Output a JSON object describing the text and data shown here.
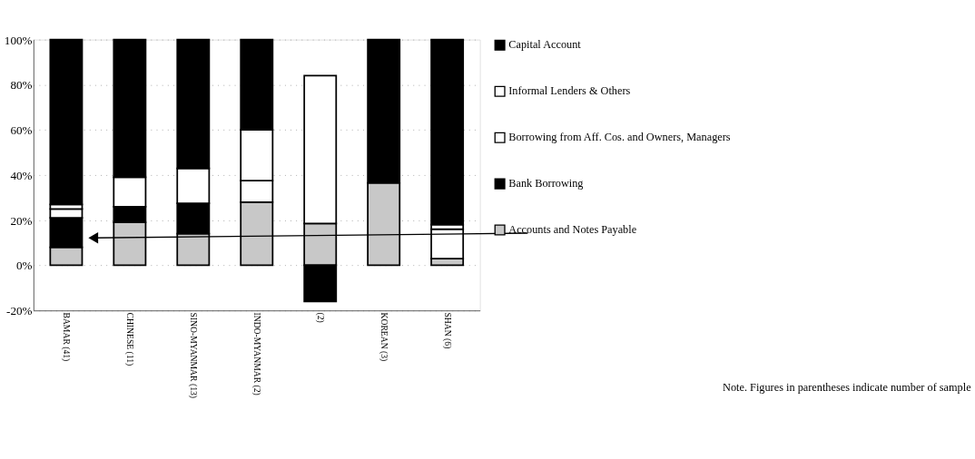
{
  "chart_data": {
    "type": "bar",
    "stacked": true,
    "categories": [
      "BAMAR (41)",
      "CHINESE (11)",
      "SINO-MYANMAR (13)",
      "INDO-MYANMAR (2)",
      "(2)",
      "KOREAN (3)",
      "SHAN (6)"
    ],
    "series": [
      {
        "name": "Accounts and Notes Payable",
        "color": "#c8c8c8",
        "values": [
          8,
          19,
          14,
          28,
          18.5,
          36.5,
          3
        ]
      },
      {
        "name": "Bank Borrowing",
        "color": "#000000",
        "values": [
          13,
          7,
          13.5,
          0,
          -16,
          0,
          0
        ]
      },
      {
        "name": "Borrowing from Aff. Cos. and Owners, Managers",
        "color": "#ffffff",
        "values": [
          4,
          13,
          15.5,
          9.5,
          65.5,
          0,
          13
        ]
      },
      {
        "name": "Informal Lenders & Others",
        "color": "#ffffff",
        "values": [
          2,
          0,
          0,
          22.5,
          0,
          0,
          2
        ]
      },
      {
        "name": "Capital Account",
        "color": "#000000",
        "values": [
          73,
          61,
          57,
          40,
          0,
          63.5,
          82
        ]
      }
    ],
    "ylim": [
      -20,
      100
    ],
    "yticks": [
      {
        "value": -20,
        "label": "-20%"
      },
      {
        "value": 0,
        "label": "0%"
      },
      {
        "value": 20,
        "label": "20%"
      },
      {
        "value": 40,
        "label": "40%"
      },
      {
        "value": 60,
        "label": "60%"
      },
      {
        "value": 80,
        "label": "80%"
      },
      {
        "value": 100,
        "label": "100%"
      }
    ],
    "grid": "y",
    "legend": "right",
    "annotations": [
      "Note.  Figures in parentheses indicate number of sample"
    ]
  }
}
